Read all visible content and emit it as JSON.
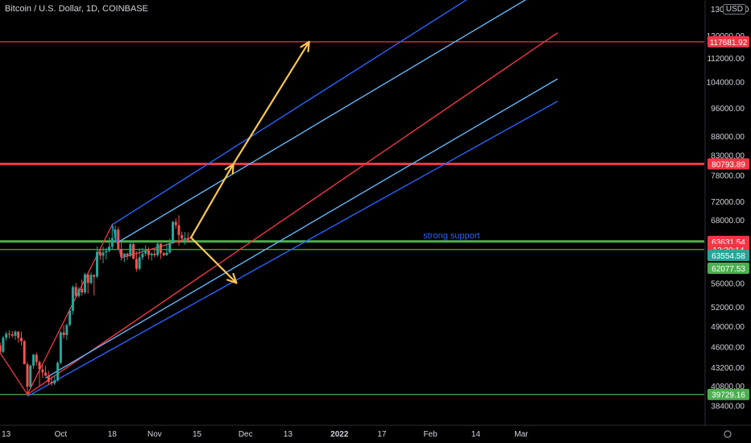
{
  "header": {
    "title": "Bitcoin / U.S. Dollar, 1D, COINBASE",
    "currency": "USD"
  },
  "colors": {
    "background": "#000000",
    "up_candle": "#26a69a",
    "down_candle": "#ef5350",
    "axis_text": "#d1d4dc",
    "red_level": "#f23645",
    "green_level": "#4caf50",
    "channel_blue": "#2962ff",
    "channel_light_blue": "#64b5f6",
    "median_red": "#f23645",
    "arrow": "#f9c74f",
    "annotation": "#2962ff"
  },
  "chart_data": {
    "type": "candlestick",
    "title": "Bitcoin / U.S. Dollar, 1D, COINBASE",
    "y_scale": "log",
    "ylim": [
      37500,
      135000
    ],
    "y_ticks": [
      {
        "value": 120000,
        "label": "120000.00"
      },
      {
        "value": 112000,
        "label": "112000.00"
      },
      {
        "value": 104000,
        "label": "104000.00"
      },
      {
        "value": 96000,
        "label": "96000.00"
      },
      {
        "value": 88000,
        "label": "88000.00"
      },
      {
        "value": 83000,
        "label": "83000.00"
      },
      {
        "value": 78000,
        "label": "78000.00"
      },
      {
        "value": 72000,
        "label": "72000.00"
      },
      {
        "value": 68000,
        "label": "68000.00"
      },
      {
        "value": 56000,
        "label": "56000.00"
      },
      {
        "value": 52000,
        "label": "52000.00"
      },
      {
        "value": 49000,
        "label": "49000.00"
      },
      {
        "value": 46000,
        "label": "46000.00"
      },
      {
        "value": 43200,
        "label": "43200.00"
      },
      {
        "value": 40800,
        "label": "40800.00"
      },
      {
        "value": 38400,
        "label": "38400.00"
      }
    ],
    "top_tick_label": "130000.00",
    "x_ticks": [
      {
        "day": 13,
        "label": "13"
      },
      {
        "day": 31,
        "label": "Oct"
      },
      {
        "day": 48,
        "label": "18"
      },
      {
        "day": 62,
        "label": "Nov"
      },
      {
        "day": 76,
        "label": "15"
      },
      {
        "day": 92,
        "label": "Dec"
      },
      {
        "day": 106,
        "label": "13"
      },
      {
        "day": 123,
        "label": "2022"
      },
      {
        "day": 137,
        "label": "17"
      },
      {
        "day": 153,
        "label": "Feb"
      },
      {
        "day": 168,
        "label": "14"
      },
      {
        "day": 183,
        "label": "Mar"
      }
    ],
    "x_axis_note": "day index 0 = Sep 1, 2021",
    "candles": [
      {
        "day": 10,
        "o": 47200,
        "h": 48000,
        "l": 45800,
        "c": 46200
      },
      {
        "day": 11,
        "o": 46200,
        "h": 46600,
        "l": 45000,
        "c": 45300
      },
      {
        "day": 12,
        "o": 45300,
        "h": 47600,
        "l": 45100,
        "c": 47300
      },
      {
        "day": 13,
        "o": 47300,
        "h": 48200,
        "l": 46900,
        "c": 47900
      },
      {
        "day": 14,
        "o": 47900,
        "h": 48400,
        "l": 47200,
        "c": 47800
      },
      {
        "day": 15,
        "o": 47800,
        "h": 48300,
        "l": 47300,
        "c": 47600
      },
      {
        "day": 16,
        "o": 47600,
        "h": 48400,
        "l": 47000,
        "c": 48200
      },
      {
        "day": 17,
        "o": 48200,
        "h": 48300,
        "l": 46600,
        "c": 47300
      },
      {
        "day": 18,
        "o": 47300,
        "h": 48200,
        "l": 46200,
        "c": 46800
      },
      {
        "day": 19,
        "o": 46800,
        "h": 47000,
        "l": 43800,
        "c": 43600
      },
      {
        "day": 20,
        "o": 43600,
        "h": 43900,
        "l": 39700,
        "c": 40700
      },
      {
        "day": 21,
        "o": 40700,
        "h": 43600,
        "l": 40500,
        "c": 43400
      },
      {
        "day": 22,
        "o": 43400,
        "h": 45000,
        "l": 43000,
        "c": 44900
      },
      {
        "day": 23,
        "o": 44900,
        "h": 45200,
        "l": 43400,
        "c": 43900
      },
      {
        "day": 24,
        "o": 43900,
        "h": 44100,
        "l": 40800,
        "c": 42900
      },
      {
        "day": 25,
        "o": 42900,
        "h": 43400,
        "l": 41800,
        "c": 42500
      },
      {
        "day": 26,
        "o": 42500,
        "h": 43400,
        "l": 42000,
        "c": 42100
      },
      {
        "day": 27,
        "o": 42100,
        "h": 42700,
        "l": 40900,
        "c": 41300
      },
      {
        "day": 28,
        "o": 41300,
        "h": 42000,
        "l": 40800,
        "c": 41100
      },
      {
        "day": 29,
        "o": 41100,
        "h": 42200,
        "l": 40900,
        "c": 41500
      },
      {
        "day": 30,
        "o": 41500,
        "h": 44000,
        "l": 41300,
        "c": 43800
      },
      {
        "day": 31,
        "o": 43800,
        "h": 48300,
        "l": 43600,
        "c": 48100
      },
      {
        "day": 32,
        "o": 48100,
        "h": 49200,
        "l": 47200,
        "c": 47700
      },
      {
        "day": 33,
        "o": 47700,
        "h": 49400,
        "l": 47000,
        "c": 49200
      },
      {
        "day": 34,
        "o": 49200,
        "h": 51800,
        "l": 49000,
        "c": 51400
      },
      {
        "day": 35,
        "o": 51400,
        "h": 55600,
        "l": 50800,
        "c": 55300
      },
      {
        "day": 36,
        "o": 55300,
        "h": 56000,
        "l": 53600,
        "c": 53800
      },
      {
        "day": 37,
        "o": 53800,
        "h": 55300,
        "l": 53500,
        "c": 55000
      },
      {
        "day": 38,
        "o": 55000,
        "h": 56600,
        "l": 53900,
        "c": 54400
      },
      {
        "day": 39,
        "o": 54400,
        "h": 57800,
        "l": 54100,
        "c": 57500
      },
      {
        "day": 40,
        "o": 57500,
        "h": 57800,
        "l": 54200,
        "c": 56000
      },
      {
        "day": 41,
        "o": 56000,
        "h": 57900,
        "l": 55700,
        "c": 57400
      },
      {
        "day": 42,
        "o": 57400,
        "h": 57500,
        "l": 53900,
        "c": 57100
      },
      {
        "day": 43,
        "o": 57100,
        "h": 62700,
        "l": 56800,
        "c": 61600
      },
      {
        "day": 44,
        "o": 61600,
        "h": 62100,
        "l": 60100,
        "c": 60900
      },
      {
        "day": 45,
        "o": 60900,
        "h": 62600,
        "l": 59500,
        "c": 61500
      },
      {
        "day": 46,
        "o": 61500,
        "h": 62400,
        "l": 60200,
        "c": 61800
      },
      {
        "day": 47,
        "o": 61800,
        "h": 64400,
        "l": 61500,
        "c": 62600
      },
      {
        "day": 48,
        "o": 62600,
        "h": 67000,
        "l": 62000,
        "c": 64300
      },
      {
        "day": 49,
        "o": 64300,
        "h": 66900,
        "l": 63600,
        "c": 66000
      },
      {
        "day": 50,
        "o": 66000,
        "h": 66600,
        "l": 62000,
        "c": 62200
      },
      {
        "day": 51,
        "o": 62200,
        "h": 63600,
        "l": 60000,
        "c": 60700
      },
      {
        "day": 52,
        "o": 60700,
        "h": 61400,
        "l": 59700,
        "c": 61300
      },
      {
        "day": 53,
        "o": 61300,
        "h": 61500,
        "l": 60100,
        "c": 60900
      },
      {
        "day": 54,
        "o": 60900,
        "h": 63700,
        "l": 60600,
        "c": 63100
      },
      {
        "day": 55,
        "o": 63100,
        "h": 63400,
        "l": 60500,
        "c": 60300
      },
      {
        "day": 56,
        "o": 60300,
        "h": 61700,
        "l": 58000,
        "c": 58500
      },
      {
        "day": 57,
        "o": 58500,
        "h": 62300,
        "l": 58200,
        "c": 60600
      },
      {
        "day": 58,
        "o": 60600,
        "h": 62400,
        "l": 60100,
        "c": 61300
      },
      {
        "day": 59,
        "o": 61300,
        "h": 62900,
        "l": 60800,
        "c": 61900
      },
      {
        "day": 60,
        "o": 61900,
        "h": 62500,
        "l": 60200,
        "c": 61000
      },
      {
        "day": 61,
        "o": 61000,
        "h": 61500,
        "l": 60000,
        "c": 61300
      },
      {
        "day": 62,
        "o": 61300,
        "h": 62000,
        "l": 60600,
        "c": 61000
      },
      {
        "day": 63,
        "o": 61000,
        "h": 63600,
        "l": 60700,
        "c": 63200
      },
      {
        "day": 64,
        "o": 63200,
        "h": 63300,
        "l": 60300,
        "c": 61400
      },
      {
        "day": 65,
        "o": 61400,
        "h": 61600,
        "l": 60800,
        "c": 61000
      },
      {
        "day": 66,
        "o": 61000,
        "h": 63200,
        "l": 60900,
        "c": 61500
      },
      {
        "day": 67,
        "o": 61500,
        "h": 64200,
        "l": 61300,
        "c": 63300
      },
      {
        "day": 68,
        "o": 63300,
        "h": 67800,
        "l": 63200,
        "c": 67600
      },
      {
        "day": 69,
        "o": 67600,
        "h": 68300,
        "l": 66200,
        "c": 66900
      },
      {
        "day": 70,
        "o": 66900,
        "h": 69000,
        "l": 62800,
        "c": 64900
      },
      {
        "day": 71,
        "o": 64900,
        "h": 65600,
        "l": 63700,
        "c": 64200
      },
      {
        "day": 72,
        "o": 64200,
        "h": 65500,
        "l": 63000,
        "c": 64300
      },
      {
        "day": 73,
        "o": 64300,
        "h": 65400,
        "l": 63400,
        "c": 63600
      }
    ],
    "horizontal_levels": [
      {
        "price": 117681.92,
        "label": "117681.92",
        "style": "red"
      },
      {
        "price": 80793.89,
        "label": "80793.89",
        "style": "red-bold"
      },
      {
        "price": 63631.54,
        "label": "63631.54",
        "style": "green-bold"
      },
      {
        "price": 62077.53,
        "label": "62077.53",
        "style": "green"
      },
      {
        "price": 39729.16,
        "label": "39729.16",
        "style": "green"
      }
    ],
    "price_badges": [
      {
        "price": 63631.54,
        "label": "63631.54",
        "color": "#f23645"
      },
      {
        "price": 63000,
        "label": "12:30:14",
        "color": "#f23645"
      },
      {
        "price": 63554.58,
        "label": "63554.58",
        "color": "#26a69a",
        "display_price": 60950
      },
      {
        "price": 62077.53,
        "label": "62077.53",
        "color": "#4caf50",
        "display_price": 58600
      }
    ],
    "pitchfork": {
      "pivots": [
        {
          "day": 7,
          "price": 47800
        },
        {
          "day": 20,
          "price": 39729
        },
        {
          "day": 48,
          "price": 67000
        },
        {
          "day": 51,
          "price": 60500
        },
        {
          "day": 74,
          "price": 64400
        }
      ],
      "median_line": [
        {
          "day": 20,
          "price": 39729
        },
        {
          "day": 195,
          "price": 121000
        }
      ],
      "upper_line": [
        {
          "day": 48,
          "price": 67000
        },
        {
          "day": 195,
          "price": 160000
        }
      ],
      "upper_inner_line": [
        {
          "day": 50,
          "price": 63500
        },
        {
          "day": 195,
          "price": 142000
        }
      ],
      "lower_inner_line": [
        {
          "day": 26,
          "price": 41800
        },
        {
          "day": 195,
          "price": 105000
        }
      ],
      "lower_line": [
        {
          "day": 20,
          "price": 39500
        },
        {
          "day": 195,
          "price": 98000
        }
      ]
    },
    "arrows": [
      {
        "from": {
          "day": 74,
          "price": 64400
        },
        "to": {
          "day": 88,
          "price": 80793
        }
      },
      {
        "from": {
          "day": 88,
          "price": 80793
        },
        "to": {
          "day": 113,
          "price": 117681
        }
      },
      {
        "from": {
          "day": 74,
          "price": 64400
        },
        "to": {
          "day": 89,
          "price": 56000
        }
      }
    ],
    "annotations": [
      {
        "text": "strong support",
        "day": 160,
        "price": 64200
      }
    ]
  }
}
